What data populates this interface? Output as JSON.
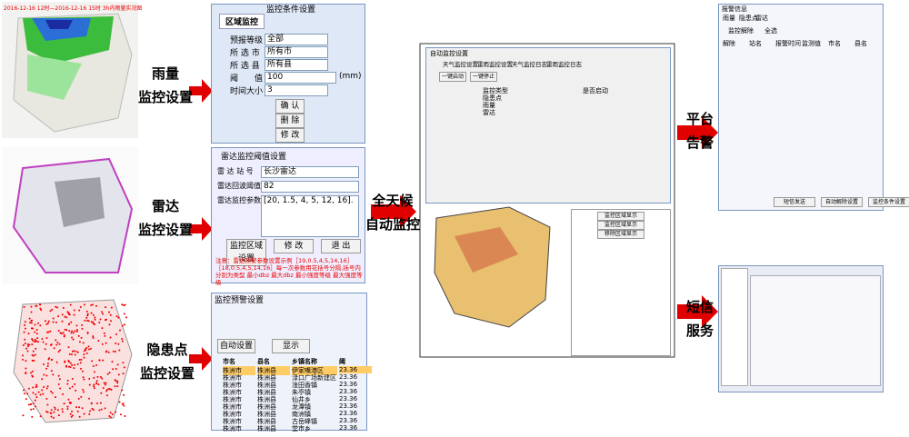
{
  "map_stamp": "2016-12-16 12时—2016-12-16 15时 3h内雨量实况图",
  "labels": {
    "rain": [
      "雨量",
      "监控设置"
    ],
    "radar": [
      "雷达",
      "监控设置"
    ],
    "hazard": [
      "隐患点",
      "监控设置"
    ],
    "center": [
      "全天候",
      "自动监控"
    ],
    "alarm": [
      "平台",
      "告警"
    ],
    "sms": [
      "短信",
      "服务"
    ]
  },
  "rain_panel": {
    "title": "监控条件设置",
    "tab": "区域监控",
    "fields": [
      {
        "label": "预报等级",
        "value": "全部"
      },
      {
        "label": "所 选 市",
        "value": "所有市"
      },
      {
        "label": "所 选 县",
        "value": "所有县"
      },
      {
        "label": "阈　　值",
        "value": "100"
      },
      {
        "label": "时间大小",
        "value": "3"
      }
    ],
    "unit": "(mm)",
    "buttons": [
      "确 认",
      "删 除",
      "修 改"
    ]
  },
  "radar_panel": {
    "title": "雷达监控阈值设置",
    "fields": [
      {
        "label": "雷 达 站 号",
        "value": "长沙雷达"
      },
      {
        "label": "雷达回波阈值",
        "value": "82"
      },
      {
        "label": "雷达监控参数",
        "value": "[20, 1.5, 4, 5, 12, 16]."
      }
    ],
    "buttons": [
      "监控区域设置",
      "修 改",
      "退 出"
    ],
    "note": "注意：雷达预警参数设置示例［19,0.5,4,5,14,16］［18,0.5,4,5,14,16］每一次参数用花括号分隔,括号内分别为类型 最小dbz 最大dbz 最小强度等级 最大强度等级"
  },
  "hazard_panel": {
    "title": "监控预警设置",
    "buttons": [
      "自动设置",
      "显示"
    ],
    "columns": [
      "市名",
      "县名",
      "乡镇名称",
      "阈"
    ],
    "rows": [
      [
        "株洲市",
        "株洲县",
        "伊家嘴港区",
        "23.36"
      ],
      [
        "株洲市",
        "株洲县",
        "渌口广场新建区",
        "23.36"
      ],
      [
        "株洲市",
        "株洲县",
        "淦田香镇",
        "23.36"
      ],
      [
        "株洲市",
        "株洲县",
        "朱亭镇",
        "23.36"
      ],
      [
        "株洲市",
        "株洲县",
        "仙井乡",
        "23.36"
      ],
      [
        "株洲市",
        "株洲县",
        "龙潭镇",
        "23.36"
      ],
      [
        "株洲市",
        "株洲县",
        "南洲镇",
        "23.36"
      ],
      [
        "株洲市",
        "株洲县",
        "古岳峰镇",
        "23.36"
      ],
      [
        "株洲市",
        "株洲县",
        "堂市乡",
        "23.36"
      ]
    ]
  },
  "monitor_window": {
    "title": "自动监控设置",
    "tabs": [
      "天气监控设置",
      "雷雨监控设置",
      "天气监控日志",
      "雷雨监控日志"
    ],
    "buttons": [
      "一键启动",
      "一键停止"
    ],
    "columns": [
      "监控类型",
      "是否启动"
    ],
    "rows": [
      "隐患点",
      "雨量",
      "雷达"
    ],
    "side_buttons": [
      "监控区域显示",
      "监控区域显示",
      "移除区域显示"
    ]
  },
  "alarm_panel": {
    "title": "报警信息",
    "tabs": [
      "雨量",
      "隐患点",
      "雷达"
    ],
    "top_buttons": [
      "监控解除",
      "全选"
    ],
    "columns": [
      "解除",
      "站名",
      "报警时间",
      "监测值",
      "市名",
      "县名"
    ],
    "bottom_buttons": [
      "短信发送",
      "自动解除设置",
      "监控条件设置"
    ]
  }
}
